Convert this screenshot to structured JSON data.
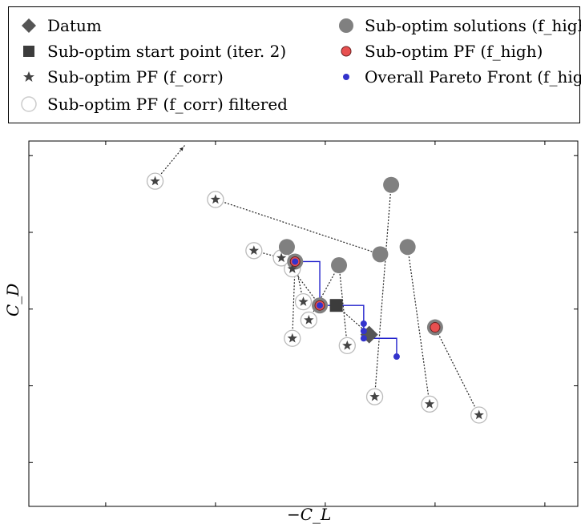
{
  "legend": {
    "items": [
      {
        "key": "datum",
        "label": "Datum",
        "marker": "diamond",
        "color": "#555555"
      },
      {
        "key": "sub_start",
        "label": "Sub-optim start point (iter. 2)",
        "marker": "square",
        "color": "#3c3c3c"
      },
      {
        "key": "pf_corr",
        "label": "Sub-optim PF (f_corr)",
        "marker": "star",
        "color": "#444444"
      },
      {
        "key": "pf_corr_filtered",
        "label": "Sub-optim PF (f_corr) filtered",
        "marker": "open-circle",
        "color": "#cccccc"
      },
      {
        "key": "sub_solutions",
        "label": "Sub-optim solutions (f_high)",
        "marker": "circle",
        "color": "#808080"
      },
      {
        "key": "pf_high",
        "label": "Sub-optim PF (f_high)",
        "marker": "red-circle",
        "color": "#e85050"
      },
      {
        "key": "overall_pf",
        "label": "Overall Pareto Front (f_high)",
        "marker": "blue-dot",
        "color": "#3333cc"
      }
    ]
  },
  "chart_data": {
    "type": "scatter",
    "xlabel": "−C_L",
    "ylabel": "C_D",
    "xlim": [
      0,
      10
    ],
    "ylim": [
      0,
      10
    ],
    "grid": false,
    "legend_position": "top",
    "series": [
      {
        "name": "Datum",
        "x": [
          6.2
        ],
        "y": [
          4.7
        ]
      },
      {
        "name": "Sub-optim start point (iter. 2)",
        "x": [
          5.6
        ],
        "y": [
          5.5
        ]
      },
      {
        "name": "Sub-optim PF (f_corr)",
        "x": [
          2.3,
          3.4,
          4.1,
          4.6,
          4.8,
          5.0,
          4.8,
          5.1,
          5.8,
          6.3,
          7.3,
          8.2
        ],
        "y": [
          8.9,
          8.4,
          7.0,
          6.8,
          6.5,
          5.6,
          4.6,
          5.1,
          4.4,
          3.0,
          2.8,
          2.5
        ]
      },
      {
        "name": "Sub-optim PF (f_corr) filtered",
        "x": [
          2.3,
          3.4,
          4.1,
          4.6,
          4.8,
          5.0,
          4.8,
          5.1,
          5.8,
          6.3,
          7.3,
          8.2
        ],
        "y": [
          8.9,
          8.4,
          7.0,
          6.8,
          6.5,
          5.6,
          4.6,
          5.1,
          4.4,
          3.0,
          2.8,
          2.5
        ]
      },
      {
        "name": "Sub-optim solutions (f_high)",
        "x": [
          4.7,
          4.85,
          5.3,
          5.65,
          6.4,
          6.6,
          6.9,
          7.4
        ],
        "y": [
          7.1,
          6.7,
          5.5,
          6.6,
          6.9,
          8.8,
          7.1,
          4.9
        ]
      },
      {
        "name": "Sub-optim PF (f_high)",
        "x": [
          4.85,
          5.3,
          7.4
        ],
        "y": [
          6.7,
          5.5,
          4.9
        ]
      },
      {
        "name": "Overall Pareto Front (f_high)",
        "x": [
          4.85,
          5.3,
          6.1,
          6.1,
          6.1,
          6.7
        ],
        "y": [
          6.7,
          5.5,
          5.0,
          4.8,
          4.6,
          4.1
        ]
      }
    ],
    "pareto_front_line": {
      "x": [
        4.85,
        5.3,
        6.1,
        6.1,
        6.7
      ],
      "y": [
        6.7,
        5.5,
        5.0,
        4.6,
        4.1
      ]
    },
    "links": [
      {
        "from": [
          2.3,
          8.9
        ],
        "to": [
          2.85,
          9.9
        ]
      },
      {
        "from": [
          3.4,
          8.4
        ],
        "to": [
          6.4,
          6.9
        ]
      },
      {
        "from": [
          4.1,
          7.0
        ],
        "to": [
          4.85,
          6.7
        ]
      },
      {
        "from": [
          4.6,
          6.8
        ],
        "to": [
          4.7,
          7.1
        ]
      },
      {
        "from": [
          4.8,
          6.5
        ],
        "to": [
          5.3,
          5.5
        ]
      },
      {
        "from": [
          5.0,
          5.6
        ],
        "to": [
          4.85,
          6.7
        ]
      },
      {
        "from": [
          4.8,
          4.6
        ],
        "to": [
          4.85,
          6.7
        ]
      },
      {
        "from": [
          5.1,
          5.1
        ],
        "to": [
          5.65,
          6.6
        ]
      },
      {
        "from": [
          5.8,
          4.4
        ],
        "to": [
          5.65,
          6.6
        ]
      },
      {
        "from": [
          6.3,
          3.0
        ],
        "to": [
          6.6,
          8.8
        ]
      },
      {
        "from": [
          7.3,
          2.8
        ],
        "to": [
          6.9,
          7.1
        ]
      },
      {
        "from": [
          8.2,
          2.5
        ],
        "to": [
          7.4,
          4.9
        ]
      },
      {
        "from": [
          6.2,
          4.7
        ],
        "to": [
          5.6,
          5.5
        ]
      }
    ]
  }
}
